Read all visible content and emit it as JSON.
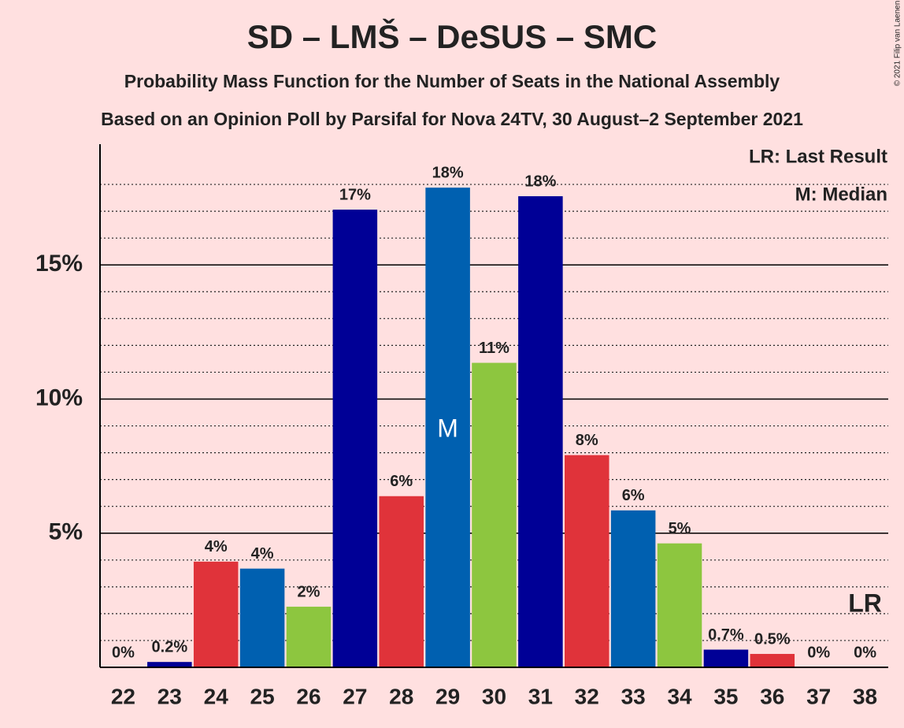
{
  "chart_data": {
    "type": "bar",
    "title": "SD – LMŠ – DeSUS – SMC",
    "subtitle": "Probability Mass Function for the Number of Seats in the National Assembly",
    "subtitle2": "Based on an Opinion Poll by Parsifal for Nova 24TV, 30 August–2 September 2021",
    "copyright": "© 2021 Filip van Laenen",
    "legend": [
      "LR: Last Result",
      "M: Median"
    ],
    "categories": [
      "22",
      "23",
      "24",
      "25",
      "26",
      "27",
      "28",
      "29",
      "30",
      "31",
      "32",
      "33",
      "34",
      "35",
      "36",
      "37",
      "38"
    ],
    "values": [
      0,
      0.2,
      3.94,
      3.68,
      2.26,
      17.06,
      6.38,
      17.88,
      11.35,
      17.56,
      7.91,
      5.85,
      4.62,
      0.66,
      0.5,
      0,
      0
    ],
    "value_labels": [
      "0%",
      "0.2%",
      "4%",
      "4%",
      "2%",
      "17%",
      "6%",
      "18%",
      "11%",
      "18%",
      "8%",
      "6%",
      "5%",
      "0.7%",
      "0.5%",
      "0%",
      "0%"
    ],
    "colors": [
      "#8dc63f",
      "#000096",
      "#e0333a",
      "#0060b0",
      "#8dc63f",
      "#000096",
      "#e0333a",
      "#0060b0",
      "#8dc63f",
      "#000096",
      "#e0333a",
      "#0060b0",
      "#8dc63f",
      "#000096",
      "#e0333a",
      "#0060b0",
      "#8dc63f"
    ],
    "median_label": "M",
    "median_at": "29",
    "last_result_label": "LR",
    "last_result_at": "38",
    "ylim": [
      0,
      19.5
    ],
    "yticks": [
      {
        "value": 5,
        "label": "5%"
      },
      {
        "value": 10,
        "label": "10%"
      },
      {
        "value": 15,
        "label": "15%"
      }
    ],
    "minor_yticks": [
      1,
      2,
      3,
      4,
      6,
      7,
      8,
      9,
      11,
      12,
      13,
      14,
      16,
      17,
      18
    ],
    "grid": true
  }
}
